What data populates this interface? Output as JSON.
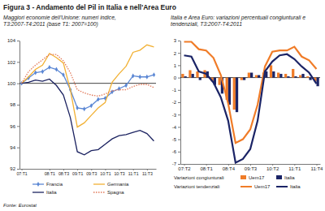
{
  "title": "Figura 3 - Andamento del Pil in Italia e nell'Area Euro",
  "source": "Fonte: Eurostat",
  "chart_data": [
    {
      "type": "line",
      "title": "Maggiori economie dell'Unione: numeri indice, T3:2007-T4:2011 (base T1: 2007=100)",
      "categories": [
        "07:T1",
        null,
        null,
        null,
        "08:T1",
        null,
        "08:T3",
        null,
        "09:T1",
        null,
        "09:T3",
        null,
        "10:T1",
        null,
        "10:T3",
        null,
        "11:T1",
        null,
        "11:T3",
        null
      ],
      "series": [
        {
          "name": "Francia",
          "color": "#5b87d4",
          "marker": "diamond",
          "values": [
            100,
            100.5,
            101,
            101.1,
            101.5,
            101.3,
            100.8,
            99.4,
            97.7,
            97.6,
            97.9,
            98.5,
            98.6,
            99.2,
            99.5,
            99.8,
            100.7,
            100.6,
            100.6,
            100.8
          ]
        },
        {
          "name": "Germania",
          "color": "#f2b134",
          "values": [
            100,
            100.6,
            101.3,
            101.7,
            102.8,
            102.4,
            101.9,
            99.4,
            95.9,
            96.3,
            97.0,
            97.7,
            98.2,
            100.1,
            100.9,
            101.6,
            102.9,
            103.1,
            103.6,
            103.4
          ]
        },
        {
          "name": "Italia",
          "color": "#1b2260",
          "values": [
            100,
            100.1,
            100.3,
            100.2,
            100.4,
            99.8,
            98.9,
            96.8,
            93.6,
            93.3,
            93.7,
            93.8,
            94.3,
            94.8,
            95.1,
            95.2,
            95.4,
            95.6,
            95.3,
            94.6
          ]
        },
        {
          "name": "Spagna",
          "color": "#e27a5a",
          "line_style": "dotted",
          "values": [
            100,
            101.1,
            101.7,
            102.2,
            102.7,
            102.7,
            102.1,
            101.0,
            99.4,
            99.1,
            98.9,
            98.8,
            99.0,
            99.3,
            99.4,
            99.4,
            99.7,
            99.9,
            99.9,
            99.6
          ]
        }
      ],
      "ylim": [
        92,
        104
      ],
      "yticks": [
        92,
        94,
        96,
        98,
        100,
        102,
        104
      ],
      "baseline": 100,
      "grid": false,
      "legend": "bottom"
    },
    {
      "type": "bar",
      "title": "Italia e Area Euro: variazioni percentuali congiunturali e tendenziali, T3:2007-T4:2011",
      "categories": [
        "07:T2",
        null,
        null,
        "08:T1",
        null,
        null,
        "08:T4",
        null,
        null,
        "09:T3",
        null,
        null,
        "10:T2",
        null,
        null,
        "11:T1",
        null,
        null,
        "11:T4"
      ],
      "series": [
        {
          "name": "Uem17",
          "type": "bar",
          "color": "#f07c28",
          "values": [
            0.3,
            0.6,
            0.5,
            0.6,
            -0.3,
            -0.6,
            -1.8,
            -2.6,
            -0.2,
            0.4,
            0.2,
            0.4,
            1.0,
            0.4,
            0.3,
            0.7,
            0.2,
            0.1,
            -0.3
          ]
        },
        {
          "name": "Italia",
          "type": "bar",
          "color": "#1b2466",
          "values": [
            0.1,
            0.3,
            -0.2,
            0.5,
            -0.6,
            -1.3,
            -2.2,
            -2.8,
            -0.2,
            0.4,
            0.2,
            0.5,
            0.5,
            0.3,
            0.1,
            0.1,
            0.3,
            -0.2,
            -0.7
          ]
        },
        {
          "name": "Uem17",
          "type": "line",
          "color": "#f07c28",
          "values": [
            2.9,
            2.9,
            2.3,
            2.2,
            1.6,
            0.2,
            -2.1,
            -5.3,
            -5.0,
            -4.2,
            -2.2,
            0.9,
            2.1,
            2.2,
            2.2,
            2.5,
            1.7,
            1.4,
            0.7
          ]
        },
        {
          "name": "Italia",
          "type": "line",
          "color": "#1b2466",
          "values": [
            1.8,
            1.7,
            0.5,
            0.3,
            -0.4,
            -1.6,
            -3.5,
            -6.9,
            -6.6,
            -5.8,
            -3.5,
            0.5,
            1.3,
            1.8,
            1.9,
            1.5,
            0.9,
            0.4,
            -0.5
          ]
        }
      ],
      "ylim": [
        -7,
        3
      ],
      "yticks": [
        -7,
        -6,
        -5,
        -4,
        -3,
        -2,
        -1,
        0,
        1,
        2,
        3
      ],
      "baseline": 0,
      "grid": false,
      "legend": "bottom",
      "annotations": [
        "Variazioni congiunturali",
        "Variazioni tendenziali"
      ]
    }
  ]
}
